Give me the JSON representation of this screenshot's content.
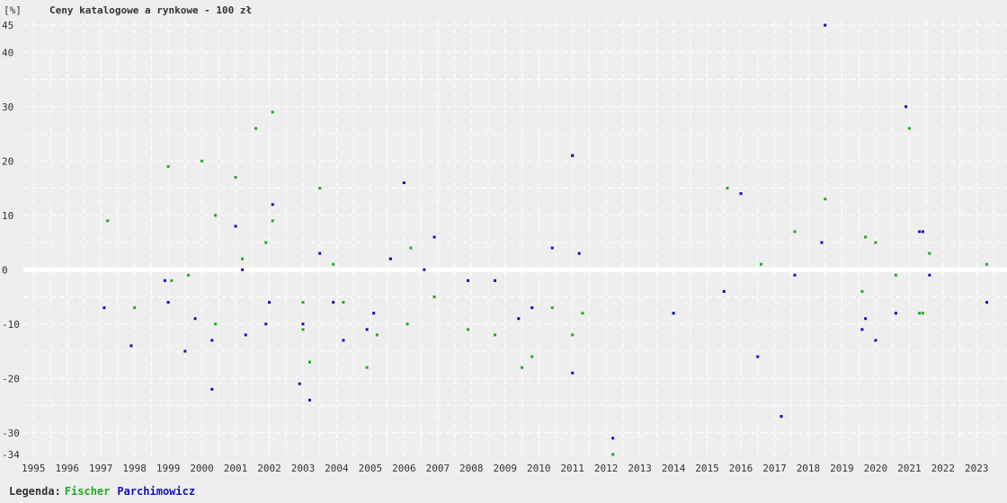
{
  "chart_data": {
    "type": "scatter",
    "title": "Ceny katalogowe a rynkowe - 100 zł",
    "ylabel": "[%]",
    "ylim": [
      -35,
      46
    ],
    "xlim": [
      1994.7,
      2023.9
    ],
    "y_ticks": [
      45,
      40,
      30,
      20,
      10,
      0,
      -10,
      -20,
      -30,
      -34
    ],
    "x_ticks": [
      1995,
      1996,
      1997,
      1998,
      1999,
      2000,
      2001,
      2002,
      2003,
      2004,
      2005,
      2006,
      2007,
      2008,
      2009,
      2010,
      2011,
      2012,
      2013,
      2014,
      2015,
      2016,
      2017,
      2018,
      2019,
      2020,
      2021,
      2022,
      2023
    ],
    "grid": true,
    "colors": {
      "background": "#eeeeee",
      "grid": "#ffffff",
      "zero_line": "#ffffff",
      "Fischer": "#22aa22",
      "Parchimowicz": "#1111bb"
    },
    "series": [
      {
        "name": "Fischer",
        "points": [
          [
            1997.2,
            9
          ],
          [
            1998.0,
            -7
          ],
          [
            1999.0,
            19
          ],
          [
            1999.1,
            -2
          ],
          [
            1999.6,
            -1
          ],
          [
            2000.0,
            20
          ],
          [
            2000.4,
            -10
          ],
          [
            2000.4,
            10
          ],
          [
            2001.0,
            17
          ],
          [
            2001.2,
            2
          ],
          [
            2001.6,
            26
          ],
          [
            2001.9,
            5
          ],
          [
            2002.1,
            9
          ],
          [
            2002.1,
            29
          ],
          [
            2003.0,
            -6
          ],
          [
            2003.0,
            -11
          ],
          [
            2003.2,
            -17
          ],
          [
            2003.5,
            15
          ],
          [
            2003.9,
            1
          ],
          [
            2004.2,
            -6
          ],
          [
            2004.9,
            -18
          ],
          [
            2005.2,
            -12
          ],
          [
            2005.6,
            2
          ],
          [
            2006.1,
            -10
          ],
          [
            2006.2,
            4
          ],
          [
            2006.9,
            -5
          ],
          [
            2007.9,
            -11
          ],
          [
            2008.7,
            -12
          ],
          [
            2009.5,
            -18
          ],
          [
            2009.8,
            -16
          ],
          [
            2010.4,
            -7
          ],
          [
            2011.0,
            -12
          ],
          [
            2011.0,
            21
          ],
          [
            2011.3,
            -8
          ],
          [
            2012.2,
            -34
          ],
          [
            2014.0,
            -8
          ],
          [
            2015.6,
            15
          ],
          [
            2016.0,
            14
          ],
          [
            2016.6,
            1
          ],
          [
            2017.2,
            -27
          ],
          [
            2017.6,
            7
          ],
          [
            2018.5,
            13
          ],
          [
            2018.5,
            45
          ],
          [
            2019.6,
            -4
          ],
          [
            2019.7,
            6
          ],
          [
            2020.0,
            5
          ],
          [
            2020.6,
            -1
          ],
          [
            2021.0,
            26
          ],
          [
            2021.3,
            -8
          ],
          [
            2021.4,
            -8
          ],
          [
            2021.6,
            3
          ],
          [
            2023.3,
            1
          ]
        ]
      },
      {
        "name": "Parchimowicz",
        "points": [
          [
            1997.1,
            -7
          ],
          [
            1997.9,
            -14
          ],
          [
            1998.9,
            -2
          ],
          [
            1999.0,
            -6
          ],
          [
            1999.5,
            -15
          ],
          [
            1999.8,
            -9
          ],
          [
            2000.3,
            -13
          ],
          [
            2000.3,
            -22
          ],
          [
            2001.0,
            8
          ],
          [
            2001.2,
            0
          ],
          [
            2001.3,
            -12
          ],
          [
            2001.9,
            -10
          ],
          [
            2002.0,
            -6
          ],
          [
            2002.1,
            12
          ],
          [
            2002.9,
            -21
          ],
          [
            2003.0,
            -10
          ],
          [
            2003.2,
            -24
          ],
          [
            2003.5,
            3
          ],
          [
            2003.9,
            -6
          ],
          [
            2004.2,
            -13
          ],
          [
            2004.9,
            -11
          ],
          [
            2005.1,
            -8
          ],
          [
            2005.6,
            2
          ],
          [
            2006.0,
            16
          ],
          [
            2006.6,
            0
          ],
          [
            2006.9,
            6
          ],
          [
            2007.9,
            -2
          ],
          [
            2008.7,
            -2
          ],
          [
            2009.4,
            -9
          ],
          [
            2009.8,
            -7
          ],
          [
            2010.4,
            4
          ],
          [
            2011.0,
            21
          ],
          [
            2011.0,
            -19
          ],
          [
            2011.2,
            3
          ],
          [
            2012.2,
            -31
          ],
          [
            2014.0,
            -8
          ],
          [
            2015.5,
            -4
          ],
          [
            2016.0,
            14
          ],
          [
            2016.5,
            -16
          ],
          [
            2017.2,
            -27
          ],
          [
            2017.6,
            -1
          ],
          [
            2018.4,
            5
          ],
          [
            2018.5,
            45
          ],
          [
            2019.6,
            -11
          ],
          [
            2019.7,
            -9
          ],
          [
            2020.0,
            -13
          ],
          [
            2020.6,
            -8
          ],
          [
            2020.9,
            30
          ],
          [
            2021.3,
            7
          ],
          [
            2021.4,
            7
          ],
          [
            2021.6,
            -1
          ],
          [
            2023.3,
            -6
          ]
        ]
      }
    ]
  },
  "legend": {
    "prefix": "Legenda:",
    "items": [
      "Fischer",
      "Parchimowicz"
    ]
  }
}
